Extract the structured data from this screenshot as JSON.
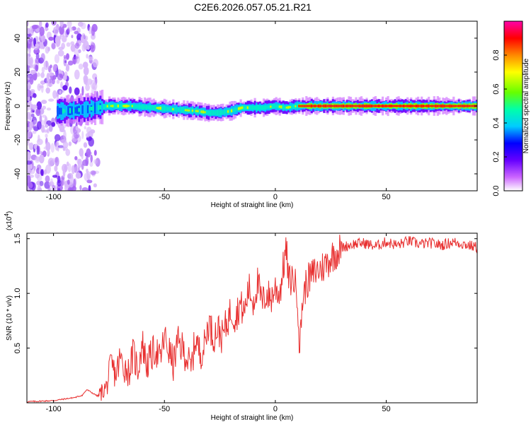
{
  "title": "C2E6.2026.057.05.21.R21",
  "chart_data": [
    {
      "type": "heatmap",
      "name": "spectrogram",
      "xlabel": "Height of straight line (km)",
      "ylabel": "Frequency (Hz)",
      "xlim": [
        -112,
        91
      ],
      "ylim": [
        -50,
        50
      ],
      "x_ticks": [
        "-100",
        "-50",
        "0",
        "50"
      ],
      "y_ticks": [
        "-40",
        "-20",
        "0",
        "20",
        "40"
      ],
      "ridge_frequency": {
        "x": [
          -95,
          -85,
          -75,
          -65,
          -55,
          -45,
          -35,
          -30,
          -25,
          -20,
          -15,
          -10,
          -5,
          0,
          5,
          10,
          20,
          40,
          60,
          80,
          90
        ],
        "y": [
          -3,
          -2,
          0,
          0,
          -1,
          -2,
          -3,
          -4,
          -4,
          -3,
          -1,
          -1,
          -1,
          0,
          -1,
          0,
          0,
          0,
          0,
          0,
          0
        ]
      },
      "colorbar": {
        "label": "Normalized spectral amplitude",
        "range": [
          0.0,
          1.0
        ],
        "ticks": [
          "0.0",
          "0.2",
          "0.4",
          "0.6",
          "0.8"
        ],
        "colors": [
          "#ffffff",
          "#cc66ff",
          "#6600ff",
          "#0000ff",
          "#00ccff",
          "#00ffaa",
          "#66ff00",
          "#ffff00",
          "#ff8800",
          "#ff0000",
          "#ff00aa"
        ]
      }
    },
    {
      "type": "line",
      "name": "snr",
      "xlabel": "Height of straight line (km)",
      "ylabel": "SNR (10 * v/v)",
      "scale_label": "(x10",
      "scale_exp": "4",
      "scale_close": ")",
      "xlim": [
        -112,
        91
      ],
      "ylim": [
        0,
        1.55
      ],
      "x_ticks": [
        "-100",
        "-50",
        "0",
        "50"
      ],
      "y_ticks": [
        "0.5",
        "1.0",
        "1.5"
      ],
      "color": "#e83030",
      "x": [
        -112,
        -100,
        -90,
        -87,
        -85,
        -80,
        -76,
        -74,
        -72,
        -70,
        -68,
        -66,
        -64,
        -62,
        -60,
        -58,
        -56,
        -54,
        -52,
        -50,
        -48,
        -46,
        -44,
        -42,
        -40,
        -38,
        -36,
        -34,
        -32,
        -30,
        -28,
        -26,
        -24,
        -22,
        -20,
        -18,
        -16,
        -14,
        -12,
        -10,
        -8,
        -6,
        -4,
        -2,
        0,
        2,
        4,
        5,
        6,
        8,
        10,
        11,
        12,
        14,
        16,
        18,
        20,
        22,
        24,
        26,
        28,
        30,
        35,
        40,
        45,
        50,
        55,
        60,
        65,
        70,
        75,
        80,
        85,
        91
      ],
      "y": [
        0.01,
        0.02,
        0.05,
        0.07,
        0.12,
        0.06,
        0.15,
        0.35,
        0.25,
        0.4,
        0.33,
        0.28,
        0.45,
        0.3,
        0.55,
        0.35,
        0.42,
        0.5,
        0.38,
        0.6,
        0.48,
        0.35,
        0.55,
        0.5,
        0.42,
        0.3,
        0.6,
        0.45,
        0.52,
        0.75,
        0.6,
        0.68,
        0.6,
        0.72,
        0.85,
        0.78,
        0.9,
        0.82,
        1.05,
        0.92,
        1.1,
        0.9,
        1.0,
        0.95,
        1.05,
        1.0,
        1.3,
        1.4,
        1.1,
        1.15,
        1.0,
        0.45,
        0.9,
        1.1,
        1.15,
        1.2,
        1.22,
        1.25,
        1.3,
        1.35,
        1.38,
        1.42,
        1.45,
        1.46,
        1.43,
        1.47,
        1.44,
        1.48,
        1.45,
        1.46,
        1.44,
        1.47,
        1.45,
        1.42
      ]
    }
  ]
}
